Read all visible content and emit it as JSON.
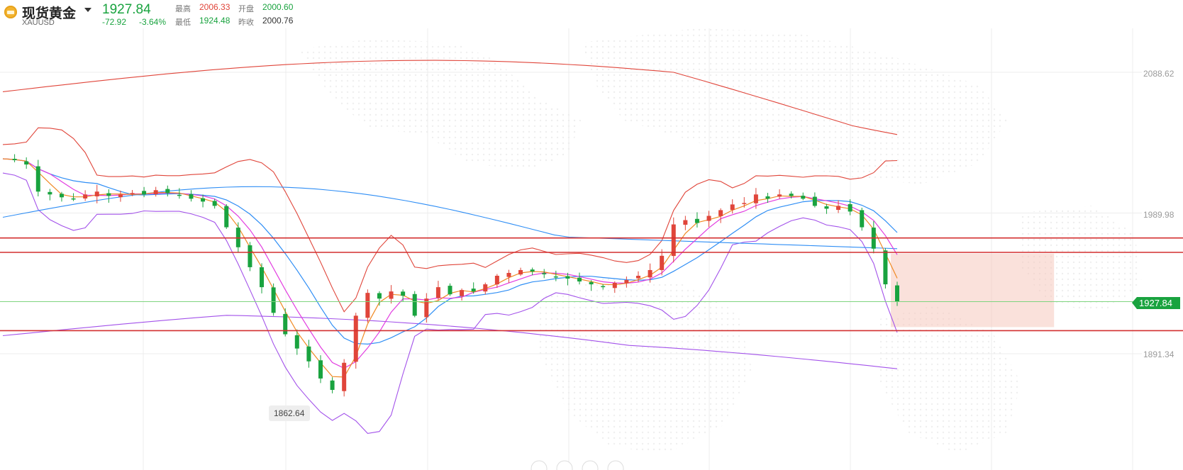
{
  "header": {
    "title": "现货黄金",
    "symbol": "XAUUSD",
    "price": "1927.84",
    "change": "-72.92",
    "change_pct": "-3.64%",
    "high_label": "最高",
    "high_value": "2006.33",
    "open_label": "开盘",
    "open_value": "2000.60",
    "low_label": "最低",
    "low_value": "1924.48",
    "prev_close_label": "昨收",
    "prev_close_value": "2000.76"
  },
  "colors": {
    "up": "#e0453a",
    "down": "#19a33f",
    "ma_orange": "#f08a24",
    "ma_magenta": "#e23ce0",
    "ma_blue": "#2f8ef5",
    "band_red": "#e0453a",
    "band_purple": "#a352ea",
    "hline": "#d32f2f",
    "zone": "#f6c8bd"
  },
  "chart_data": {
    "type": "candlestick",
    "title": "",
    "y_ticks": [
      "2088.62",
      "1989.98",
      "1891.34"
    ],
    "current_price_label": "1927.84",
    "low_marker_label": "1862.64",
    "horizontal_lines": [
      1972.5,
      1962.4,
      1907.5
    ],
    "zone": {
      "x0": 0.753,
      "x1": 0.891,
      "y_top": 1961.5,
      "y_bottom": 1910
    },
    "approx_close_series": [
      2028,
      2027,
      2024,
      2005,
      2003,
      2001,
      2000,
      2003,
      2005,
      2002,
      2003,
      2004,
      2003,
      2006,
      2004,
      2002,
      2000,
      1998,
      1995,
      1980,
      1966,
      1952,
      1938,
      1920,
      1905,
      1895,
      1886,
      1874,
      1866,
      1885,
      1918,
      1934,
      1930,
      1935,
      1932,
      1918,
      1930,
      1938,
      1933,
      1936,
      1935,
      1940,
      1946,
      1948,
      1950,
      1949,
      1947,
      1945,
      1944,
      1942,
      1940,
      1938,
      1941,
      1943,
      1946,
      1950,
      1960,
      1982,
      1985,
      1983,
      1988,
      1992,
      1996,
      1997,
      2003,
      2000,
      2003,
      2002,
      2000,
      1995,
      1993,
      1995,
      1991,
      1980,
      1965,
      1940,
      1927.84
    ],
    "ma_series": [
      {
        "name": "",
        "color": "orange"
      },
      {
        "name": "",
        "color": "magenta"
      },
      {
        "name": "",
        "color": "blue"
      }
    ],
    "bollinger_bands": [
      "red outer band",
      "purple inner band"
    ],
    "grid": true
  }
}
